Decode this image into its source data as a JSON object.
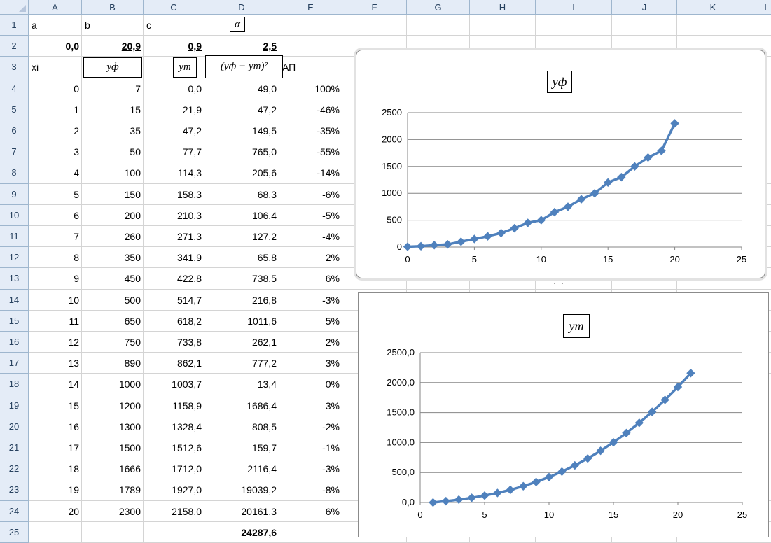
{
  "sheet": {
    "columns": [
      "A",
      "B",
      "C",
      "D",
      "E",
      "F",
      "G",
      "H",
      "I",
      "J",
      "K",
      "L"
    ],
    "rows": [
      "1",
      "2",
      "3",
      "4",
      "5",
      "6",
      "7",
      "8",
      "9",
      "10",
      "11",
      "12",
      "13",
      "14",
      "15",
      "16",
      "17",
      "18",
      "19",
      "20",
      "21",
      "22",
      "23",
      "24",
      "25"
    ],
    "row1": {
      "a": "a",
      "b": "b",
      "c": "c",
      "d": "α"
    },
    "row2": {
      "a": "0,0",
      "b": "20,9",
      "c": "0,9",
      "d": "2,5"
    },
    "row3": {
      "a": "xi",
      "b": "yф",
      "c": "yт",
      "d": "(yф − yт)²",
      "e": "АП"
    },
    "table": [
      {
        "xi": "0",
        "yf": "7",
        "yt": "0,0",
        "sq": "49,0",
        "ap": "100%"
      },
      {
        "xi": "1",
        "yf": "15",
        "yt": "21,9",
        "sq": "47,2",
        "ap": "-46%"
      },
      {
        "xi": "2",
        "yf": "35",
        "yt": "47,2",
        "sq": "149,5",
        "ap": "-35%"
      },
      {
        "xi": "3",
        "yf": "50",
        "yt": "77,7",
        "sq": "765,0",
        "ap": "-55%"
      },
      {
        "xi": "4",
        "yf": "100",
        "yt": "114,3",
        "sq": "205,6",
        "ap": "-14%"
      },
      {
        "xi": "5",
        "yf": "150",
        "yt": "158,3",
        "sq": "68,3",
        "ap": "-6%"
      },
      {
        "xi": "6",
        "yf": "200",
        "yt": "210,3",
        "sq": "106,4",
        "ap": "-5%"
      },
      {
        "xi": "7",
        "yf": "260",
        "yt": "271,3",
        "sq": "127,2",
        "ap": "-4%"
      },
      {
        "xi": "8",
        "yf": "350",
        "yt": "341,9",
        "sq": "65,8",
        "ap": "2%"
      },
      {
        "xi": "9",
        "yf": "450",
        "yt": "422,8",
        "sq": "738,5",
        "ap": "6%"
      },
      {
        "xi": "10",
        "yf": "500",
        "yt": "514,7",
        "sq": "216,8",
        "ap": "-3%"
      },
      {
        "xi": "11",
        "yf": "650",
        "yt": "618,2",
        "sq": "1011,6",
        "ap": "5%"
      },
      {
        "xi": "12",
        "yf": "750",
        "yt": "733,8",
        "sq": "262,1",
        "ap": "2%"
      },
      {
        "xi": "13",
        "yf": "890",
        "yt": "862,1",
        "sq": "777,2",
        "ap": "3%"
      },
      {
        "xi": "14",
        "yf": "1000",
        "yt": "1003,7",
        "sq": "13,4",
        "ap": "0%"
      },
      {
        "xi": "15",
        "yf": "1200",
        "yt": "1158,9",
        "sq": "1686,4",
        "ap": "3%"
      },
      {
        "xi": "16",
        "yf": "1300",
        "yt": "1328,4",
        "sq": "808,5",
        "ap": "-2%"
      },
      {
        "xi": "17",
        "yf": "1500",
        "yt": "1512,6",
        "sq": "159,7",
        "ap": "-1%"
      },
      {
        "xi": "18",
        "yf": "1666",
        "yt": "1712,0",
        "sq": "2116,4",
        "ap": "-3%"
      },
      {
        "xi": "19",
        "yf": "1789",
        "yt": "1927,0",
        "sq": "19039,2",
        "ap": "-8%"
      },
      {
        "xi": "20",
        "yf": "2300",
        "yt": "2158,0",
        "sq": "20161,3",
        "ap": "6%"
      }
    ],
    "row25": {
      "d": "24287,6"
    }
  },
  "chart_data": [
    {
      "type": "line",
      "title": "yф",
      "x": [
        0,
        1,
        2,
        3,
        4,
        5,
        6,
        7,
        8,
        9,
        10,
        11,
        12,
        13,
        14,
        15,
        16,
        17,
        18,
        19,
        20
      ],
      "series": [
        {
          "values": [
            7,
            15,
            35,
            50,
            100,
            150,
            200,
            260,
            350,
            450,
            500,
            650,
            750,
            890,
            1000,
            1200,
            1300,
            1500,
            1666,
            1789,
            2300
          ]
        }
      ],
      "xlim": [
        0,
        25
      ],
      "ylim": [
        0,
        2500
      ],
      "xticks": [
        "0",
        "5",
        "10",
        "15",
        "20",
        "25"
      ],
      "yticks": [
        "0",
        "500",
        "1000",
        "1500",
        "2000",
        "2500"
      ],
      "grid": true,
      "marker": "diamond",
      "color": "#4f81bd"
    },
    {
      "type": "line",
      "title": "yт",
      "x": [
        1,
        2,
        3,
        4,
        5,
        6,
        7,
        8,
        9,
        10,
        11,
        12,
        13,
        14,
        15,
        16,
        17,
        18,
        19,
        20,
        21
      ],
      "series": [
        {
          "values": [
            0.0,
            21.9,
            47.2,
            77.7,
            114.3,
            158.3,
            210.3,
            271.3,
            341.9,
            422.8,
            514.7,
            618.2,
            733.8,
            862.1,
            1003.7,
            1158.9,
            1328.4,
            1512.6,
            1712.0,
            1927.0,
            2158.0
          ]
        }
      ],
      "xlim": [
        0,
        25
      ],
      "ylim": [
        0,
        2500
      ],
      "xticks": [
        "0",
        "5",
        "10",
        "15",
        "20",
        "25"
      ],
      "yticks": [
        "0,0",
        "500,0",
        "1000,0",
        "1500,0",
        "2000,0",
        "2500,0"
      ],
      "grid": true,
      "marker": "diamond",
      "color": "#4f81bd"
    }
  ]
}
